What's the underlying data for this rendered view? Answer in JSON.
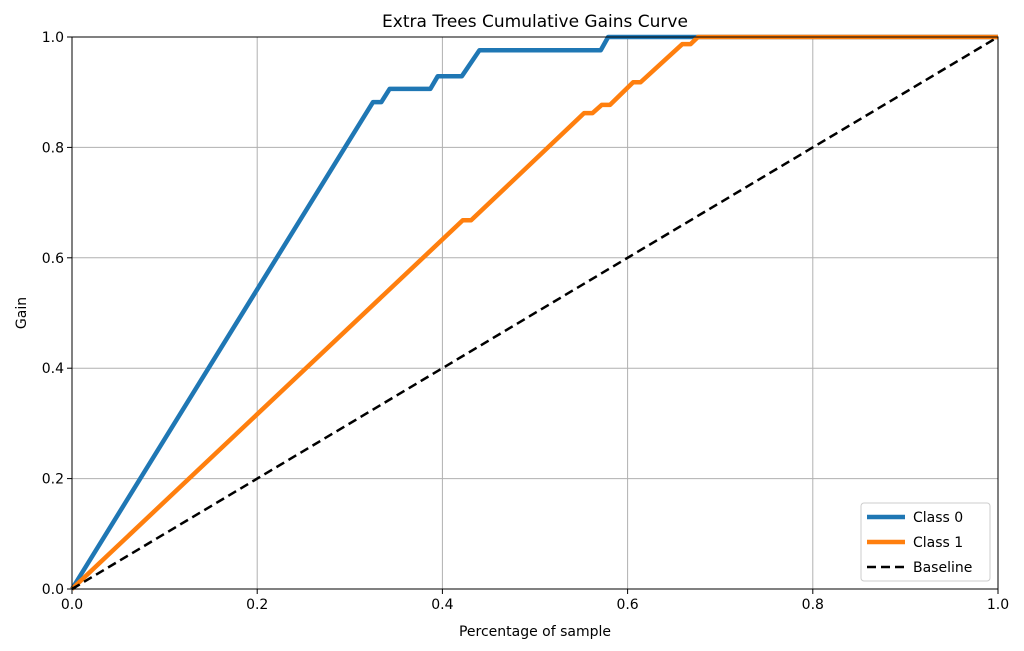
{
  "chart_data": {
    "type": "line",
    "title": "Extra Trees Cumulative Gains Curve",
    "xlabel": "Percentage of sample",
    "ylabel": "Gain",
    "xlim": [
      0,
      1
    ],
    "ylim": [
      0,
      1
    ],
    "xticks": [
      "0.0",
      "0.2",
      "0.4",
      "0.6",
      "0.8",
      "1.0"
    ],
    "yticks": [
      "0.0",
      "0.2",
      "0.4",
      "0.6",
      "0.8",
      "1.0"
    ],
    "grid": true,
    "legend_position": "bottom-right",
    "series": [
      {
        "name": "Class 0",
        "color": "#1f77b4",
        "style": "solid",
        "x": [
          0,
          0.325,
          0.334,
          0.343,
          0.387,
          0.395,
          0.421,
          0.44,
          0.571,
          0.579,
          1.0
        ],
        "y": [
          0,
          0.882,
          0.882,
          0.906,
          0.906,
          0.929,
          0.929,
          0.976,
          0.976,
          1.0,
          1.0
        ]
      },
      {
        "name": "Class 1",
        "color": "#ff7f0e",
        "style": "solid",
        "x": [
          0,
          0.422,
          0.431,
          0.553,
          0.562,
          0.572,
          0.581,
          0.606,
          0.614,
          0.659,
          0.668,
          0.676,
          1.0
        ],
        "y": [
          0,
          0.668,
          0.668,
          0.862,
          0.862,
          0.877,
          0.877,
          0.918,
          0.918,
          0.987,
          0.987,
          1.0,
          1.0
        ]
      },
      {
        "name": "Baseline",
        "color": "#000000",
        "style": "dashed",
        "x": [
          0,
          1
        ],
        "y": [
          0,
          1
        ]
      }
    ]
  }
}
